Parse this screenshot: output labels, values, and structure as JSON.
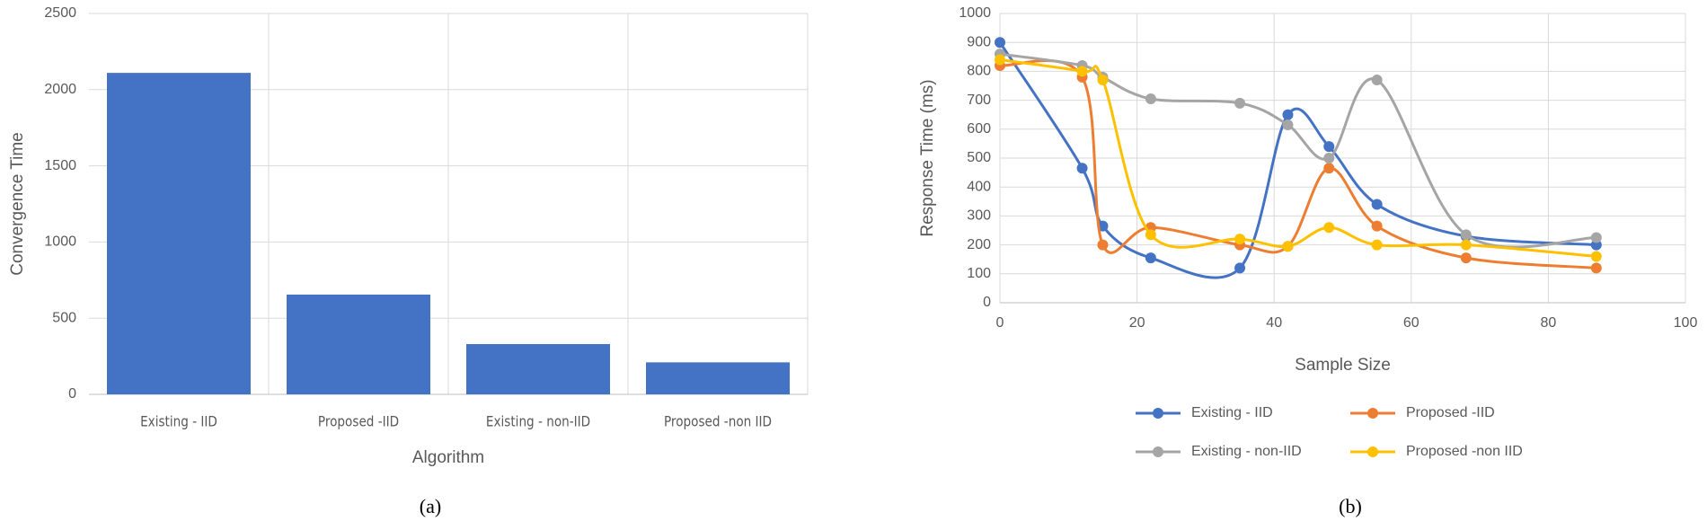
{
  "chart_data": [
    {
      "type": "bar",
      "x_label": "Algorithm",
      "y_label": "Convergence Time",
      "caption": "(a)",
      "categories": [
        "Existing - IID",
        "Proposed -IID",
        "Existing  - non-IID",
        "Proposed -non IID"
      ],
      "values": [
        2110,
        655,
        330,
        210
      ],
      "color": "#4472c4",
      "ylim": [
        0,
        2500
      ],
      "yticks": [
        0,
        500,
        1000,
        1500,
        2000,
        2500
      ],
      "grid": true
    },
    {
      "type": "line",
      "x_label": "Sample Size",
      "y_label": "Response Time (ms)",
      "caption": "(b)",
      "x": [
        0,
        12,
        15,
        22,
        35,
        42,
        48,
        55,
        68,
        87
      ],
      "series": [
        {
          "name": "Existing - IID",
          "color": "#4472c4",
          "values": [
            900,
            465,
            265,
            155,
            120,
            650,
            540,
            340,
            230,
            200
          ]
        },
        {
          "name": "Proposed -IID",
          "color": "#ed7d31",
          "values": [
            820,
            780,
            200,
            260,
            200,
            195,
            465,
            265,
            155,
            120
          ]
        },
        {
          "name": "Existing  - non-IID",
          "color": "#a5a5a5",
          "values": [
            860,
            820,
            780,
            705,
            690,
            615,
            500,
            770,
            235,
            225
          ]
        },
        {
          "name": "Proposed -non IID",
          "color": "#ffc000",
          "values": [
            840,
            800,
            770,
            235,
            220,
            195,
            260,
            200,
            200,
            160
          ]
        }
      ],
      "xlim": [
        0,
        100
      ],
      "xticks": [
        0,
        20,
        40,
        60,
        80,
        100
      ],
      "ylim": [
        0,
        1000
      ],
      "yticks": [
        0,
        100,
        200,
        300,
        400,
        500,
        600,
        700,
        800,
        900,
        1000
      ],
      "grid": true,
      "legend": "bottom"
    }
  ]
}
